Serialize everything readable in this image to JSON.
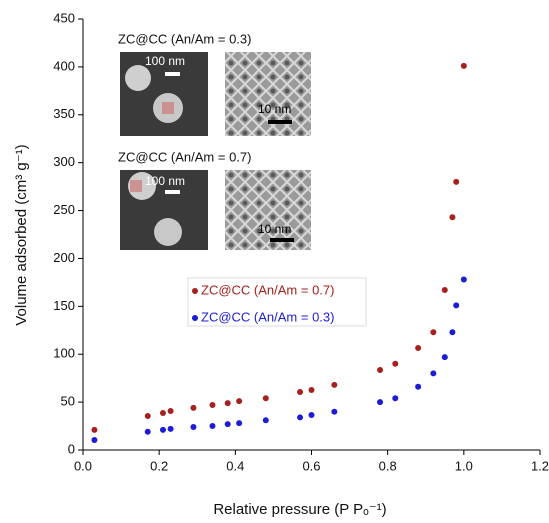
{
  "chart_data": {
    "type": "scatter",
    "xlabel": "Relative pressure (P Pₒ⁻¹)",
    "ylabel": "Volume adsorbed (cm³ g⁻¹)",
    "xlim": [
      0,
      1.2
    ],
    "xticks": [
      {
        "value": 0,
        "label": "0.0"
      },
      0.2,
      0.4,
      0.6,
      0.8,
      {
        "value": 1,
        "label": "1.0"
      },
      1.2
    ],
    "ylim": [
      0,
      450
    ],
    "yticks": [
      0,
      50,
      100,
      150,
      200,
      250,
      300,
      350,
      400,
      450
    ],
    "grid": false,
    "series": [
      {
        "name": "ZC@CC (An/Am = 0.7)",
        "color": "#a8201e",
        "x": [
          0.03,
          0.17,
          0.21,
          0.23,
          0.29,
          0.34,
          0.38,
          0.41,
          0.48,
          0.57,
          0.6,
          0.66,
          0.78,
          0.82,
          0.88,
          0.92,
          0.95,
          0.97,
          0.98,
          1.0
        ],
        "values": [
          21,
          35.5,
          38.6,
          40.7,
          44,
          47,
          49,
          51,
          54,
          60.5,
          62.6,
          68,
          83.5,
          90,
          106.5,
          123,
          167,
          243,
          280,
          401
        ]
      },
      {
        "name": "ZC@CC (An/Am = 0.3)",
        "color": "#1c1cd8",
        "x": [
          0.03,
          0.17,
          0.21,
          0.23,
          0.29,
          0.34,
          0.38,
          0.41,
          0.48,
          0.57,
          0.6,
          0.66,
          0.78,
          0.82,
          0.88,
          0.92,
          0.95,
          0.97,
          0.98,
          1.0
        ],
        "values": [
          10.4,
          19,
          21,
          22,
          24,
          25,
          27,
          28,
          31,
          34,
          36.5,
          40,
          50,
          54,
          66,
          80,
          97,
          123,
          151,
          178
        ]
      }
    ],
    "insets": [
      {
        "label": "ZC@CC (An/Am = 0.3)",
        "scale_left": "100 nm",
        "scale_right": "10 nm"
      },
      {
        "label": "ZC@CC (An/Am = 0.7)",
        "scale_left": "100 nm",
        "scale_right": "10 nm"
      }
    ]
  }
}
